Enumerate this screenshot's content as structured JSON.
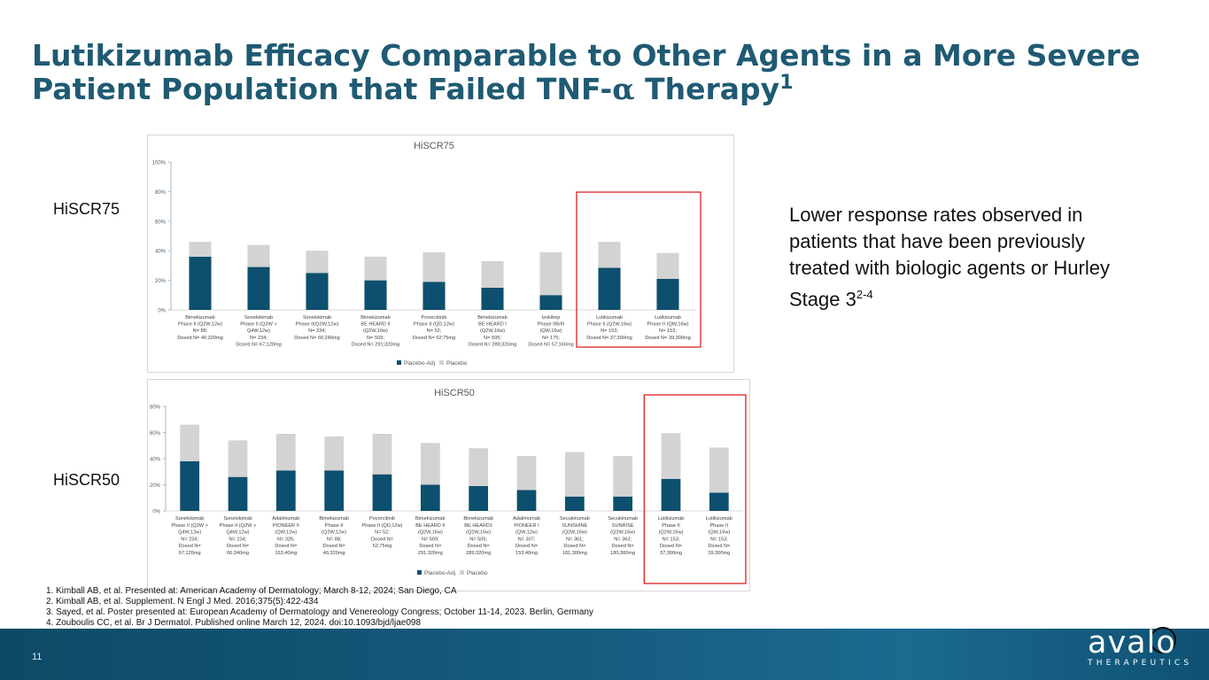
{
  "slide": {
    "title_main": "Lutikizumab Efficacy Comparable to Other Agents in a More Severe Patient Population that Failed TNF-",
    "title_alpha": "α",
    "title_end": " Therapy",
    "title_sup": "1",
    "label_hiscr75": "HiSCR75",
    "label_hiscr50": "HiSCR50",
    "callout_text": "Lower response rates observed in patients that have been previously treated with biologic agents or Hurley Stage 3",
    "callout_sup": "2-4",
    "page_number": "11",
    "logo_word": "avalo",
    "logo_sub": "THERAPEUTICS"
  },
  "references": [
    "1. Kimball AB, et al. Presented at: American Academy of Dermatology; March 8-12, 2024; San Diego, CA",
    "2. Kimball AB, et al. Supplement. N Engl J Med. 2016;375(5):422-434",
    "3. Sayed, et al. Poster presented at: European Academy of Dermatology and Venereology Congress; October 11-14, 2023. Berlin, Germany",
    "4. Zouboulis CC, et al. Br J Dermatol. Published online March 12, 2024. doi:10.1093/bjd/ljae098"
  ],
  "colors": {
    "title": "#1f5a73",
    "placebo_adj": "#0d4f6e",
    "placebo": "#d3d3d3",
    "highlight": "#e02020"
  },
  "chart_data": [
    {
      "type": "bar",
      "stacked": true,
      "title": "HiSCR75",
      "ylim": [
        0,
        100
      ],
      "yticks": [
        0,
        20,
        40,
        60,
        80,
        100
      ],
      "ytick_labels": [
        "0%",
        "20%",
        "40%",
        "60%",
        "80%",
        "100%"
      ],
      "categories": [
        [
          "Bimekizumab",
          "Phase II (Q2W,12w)",
          "N= 88;",
          "Dosed N= 46;320mg"
        ],
        [
          "Sonelokimab",
          "Phase II (Q2W >",
          "Q4W,12w)",
          "N= 234;",
          "Dosed N= 67;120mg"
        ],
        [
          "Sonelokimab",
          "Phase II(Q2W,12w)",
          "N= 234;",
          "Dosed N= 66;240mg"
        ],
        [
          "Bimekizumab",
          "BE HEARD II",
          "(Q2W,16w)",
          "N= 509;",
          "Dosed N= 291;320mg"
        ],
        [
          "Povorcitinib",
          "Phase II (QD,12w)",
          "N= 52;",
          "Dosed N= 52;75mg"
        ],
        [
          "Bimekizumab",
          "BE HEARD I",
          "(Q2W,16w)",
          "N= 505;",
          "Dosed N= 289;320mg"
        ],
        [
          "Izokibep",
          "Phase IIB/III",
          "(QW,16w)",
          "N= 175;",
          "Dosed N= 57;160mg"
        ],
        [
          "Lutikizumab",
          "Phase II (Q2W,16w)",
          "N= 153;",
          "Dosed N= 37;300mg"
        ],
        [
          "Lutikizumab",
          "Phase II (QW,16w)",
          "N= 153;",
          "Dosed N= 39;300mg"
        ]
      ],
      "series": [
        {
          "name": "Placebo-Adj",
          "values": [
            36,
            29,
            25,
            20,
            19,
            15,
            10,
            28.5,
            21
          ]
        },
        {
          "name": "Placebo",
          "values": [
            10,
            15,
            15,
            16,
            20,
            18,
            29,
            17.5,
            17.5
          ]
        }
      ],
      "highlight_categories": [
        7,
        8
      ],
      "legend": "bottom"
    },
    {
      "type": "bar",
      "stacked": true,
      "title": "HiSCR50",
      "ylim": [
        0,
        80
      ],
      "yticks": [
        0,
        20,
        40,
        60,
        80
      ],
      "ytick_labels": [
        "0%",
        "20%",
        "40%",
        "60%",
        "80%"
      ],
      "categories": [
        [
          "Sonelokimab",
          "Phase II (Q2W >",
          "Q4W,12w)",
          "N= 234;",
          "Dosed N=",
          "67;120mg"
        ],
        [
          "Sonelokimab",
          "Phase II (Q2W >",
          "Q4W,12w)",
          "N= 234;",
          "Dosed N=",
          "66;240mg"
        ],
        [
          "Adalimumab",
          "PIONEER II",
          "(QW,12w)",
          "N= 326;",
          "Dosed N=",
          "163;40mg"
        ],
        [
          "Bimekizumab",
          "Phase II",
          "(Q2W,12w)",
          "N= 88;",
          "Dosed N=",
          "46;320mg"
        ],
        [
          "Povorcitinib",
          "Phase II (QD,12w)",
          "N= 52;",
          "Dosed N=",
          "52;75mg"
        ],
        [
          "Bimekizumab",
          "BE HEARD II",
          "(Q2W,16w)",
          "N= 509;",
          "Dosed N=",
          "291;320mg"
        ],
        [
          "Bimekizumab",
          "BE HEARD1",
          "(Q2W,16w)",
          "N= 505;",
          "Dosed N=",
          "289;320mg"
        ],
        [
          "Adalimumab",
          "PIONEER I",
          "(QW,12w)",
          "N= 307;",
          "Dosed N=",
          "153;40mg"
        ],
        [
          "Secukinumab",
          "SUNSHINE",
          "(Q2W,16w)",
          "N= 361;",
          "Dosed N=",
          "181;300mg"
        ],
        [
          "Secukinumab",
          "SUNRISE",
          "(Q2W,16w)",
          "N= 363;",
          "Dosed N=",
          "180;300mg"
        ],
        [
          "Lutikizumab",
          "Phase II",
          "(Q2W,16w)",
          "N= 153;",
          "Dosed N=",
          "37;300mg"
        ],
        [
          "Lutikizumab",
          "Phase II",
          "(QW,16w)",
          "N= 153;",
          "Dosed N=",
          "39;300mg"
        ]
      ],
      "series": [
        {
          "name": "Placebo-Adj",
          "values": [
            38,
            26,
            31,
            31,
            28,
            20,
            19,
            16,
            11,
            11,
            24.5,
            14
          ]
        },
        {
          "name": "Placebo",
          "values": [
            28,
            28,
            28,
            26,
            31,
            32,
            29,
            26,
            34,
            31,
            35,
            34.5
          ]
        }
      ],
      "highlight_categories": [
        10,
        11
      ],
      "legend": "bottom"
    }
  ]
}
